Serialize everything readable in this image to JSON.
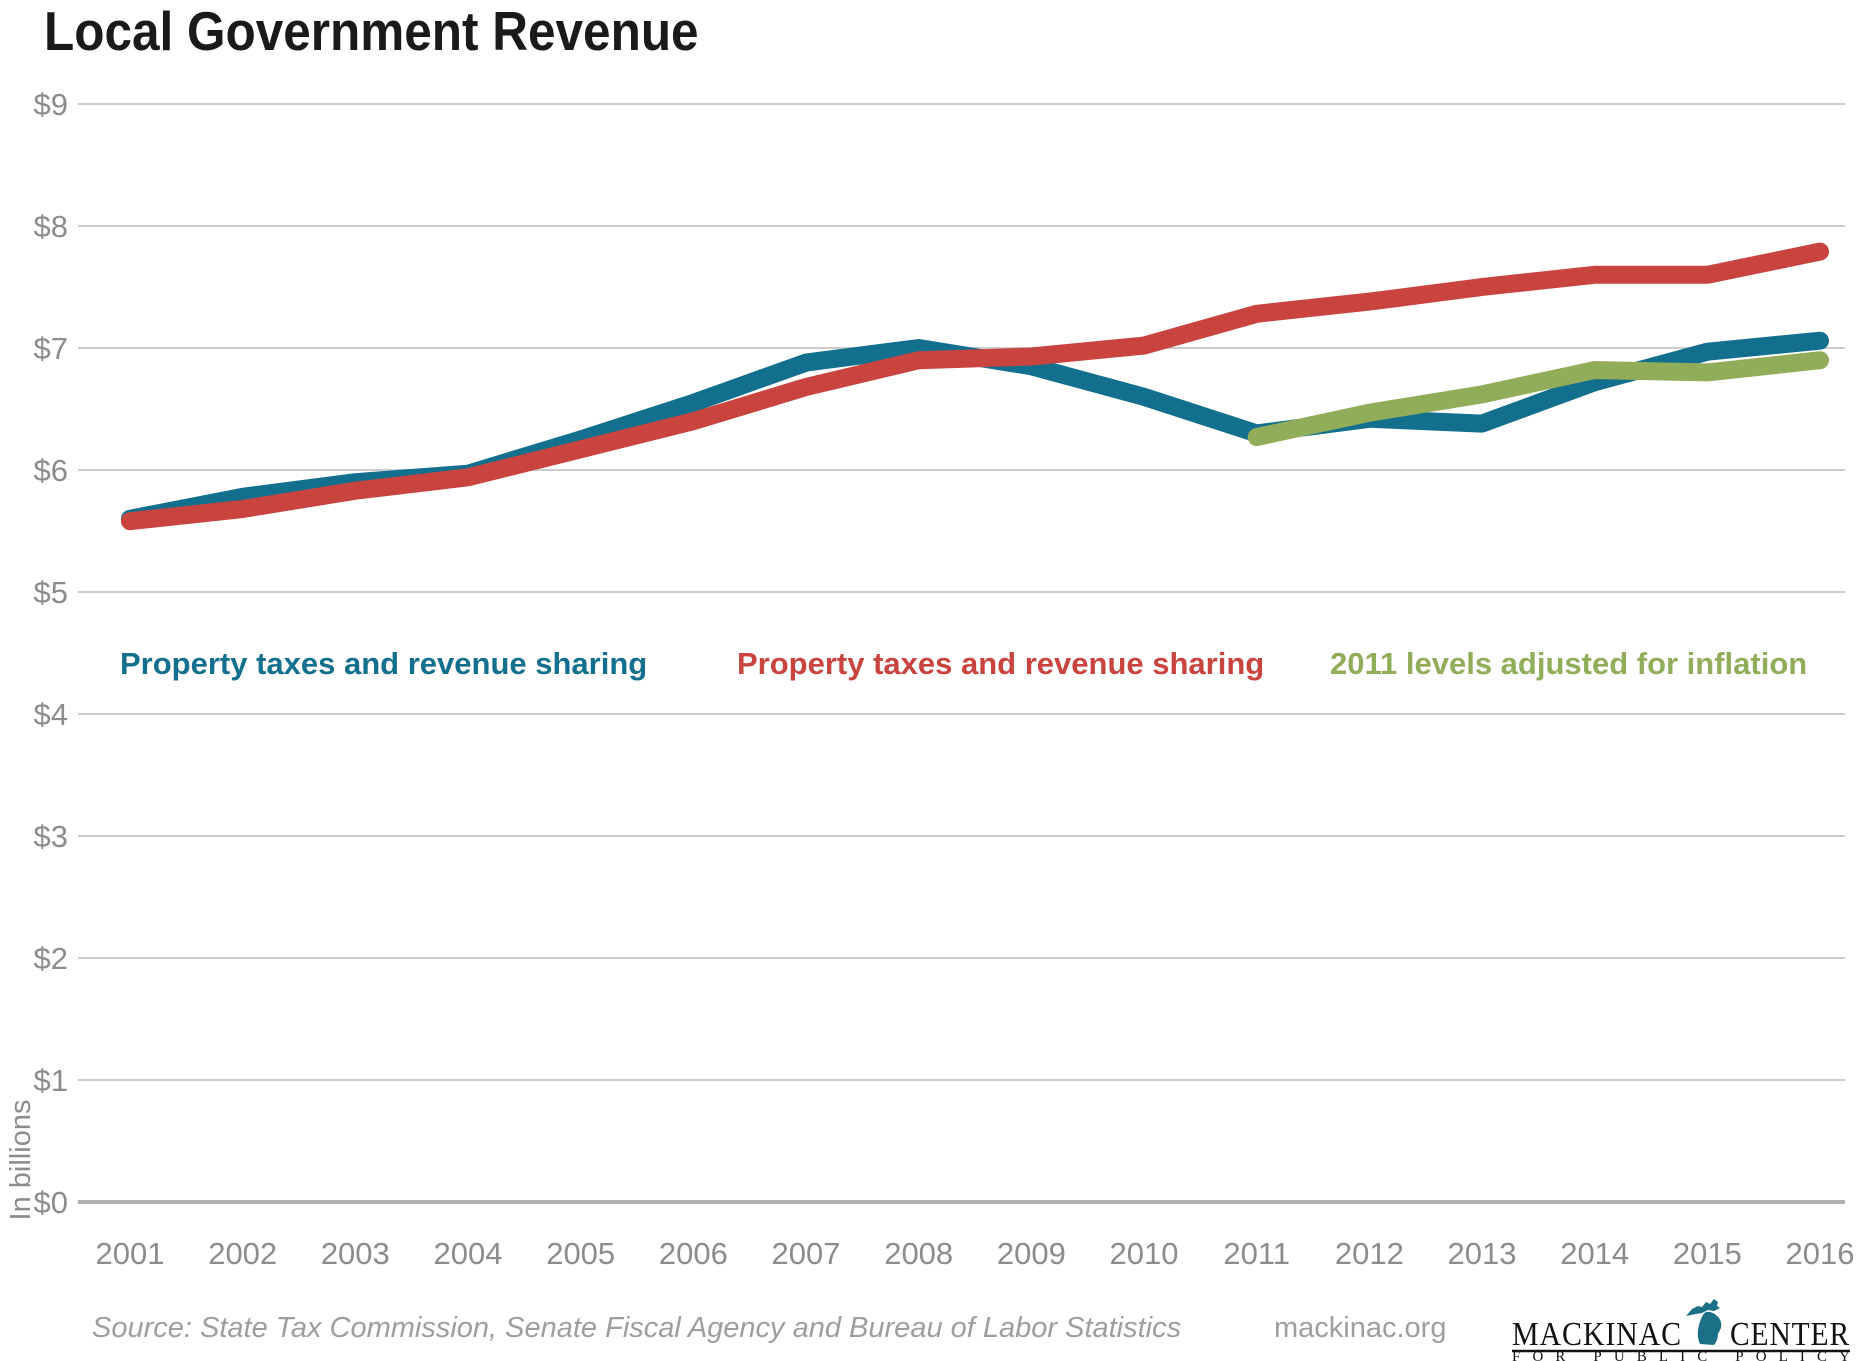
{
  "chart_data": {
    "type": "line",
    "title": "Local Government Revenue",
    "ylabel": "In billions",
    "x": [
      2001,
      2002,
      2003,
      2004,
      2005,
      2006,
      2007,
      2008,
      2009,
      2010,
      2011,
      2012,
      2013,
      2014,
      2015,
      2016
    ],
    "ylim": [
      0,
      9
    ],
    "yticks": [
      "$0",
      "$1",
      "$2",
      "$3",
      "$4",
      "$5",
      "$6",
      "$7",
      "$8",
      "$9"
    ],
    "grid": "horizontal gridlines on, vertical off",
    "legend_position": "inside plot, single row between $4 and $5 gridlines",
    "series": [
      {
        "name": "Property taxes and revenue sharing",
        "color": "#136f8e",
        "z": 0,
        "values": [
          5.6,
          5.78,
          5.9,
          5.97,
          6.25,
          6.55,
          6.88,
          7.0,
          6.85,
          6.6,
          6.3,
          6.42,
          6.38,
          6.72,
          6.97,
          7.06
        ]
      },
      {
        "name": "Property taxes and revenue sharing",
        "color": "#c9443f",
        "z": 2,
        "values": [
          5.58,
          5.68,
          5.83,
          5.94,
          6.17,
          6.4,
          6.68,
          6.9,
          6.93,
          7.02,
          7.28,
          7.38,
          7.5,
          7.6,
          7.6,
          7.79
        ]
      },
      {
        "name": "2011 levels adjusted for inflation",
        "color": "#92ad5a",
        "z": 1,
        "values": [
          null,
          null,
          null,
          null,
          null,
          null,
          null,
          null,
          null,
          null,
          6.27,
          6.47,
          6.62,
          6.82,
          6.8,
          6.9
        ]
      }
    ],
    "footer": {
      "source": "Source: State Tax Commission, Senate Fiscal Agency and Bureau of Labor Statistics",
      "website": "mackinac.org",
      "logo_line1_left": "MACKINAC",
      "logo_line1_right": "CENTER",
      "logo_line2": "FOR PUBLIC POLICY",
      "michigan_color": "#1b7088"
    },
    "colors": {
      "grid": "#cccccc",
      "baseline": "#b0b0b0",
      "axis_text": "#8c8c8c",
      "title": "#1a1a1a",
      "muted_text": "#9e9e9e"
    }
  }
}
